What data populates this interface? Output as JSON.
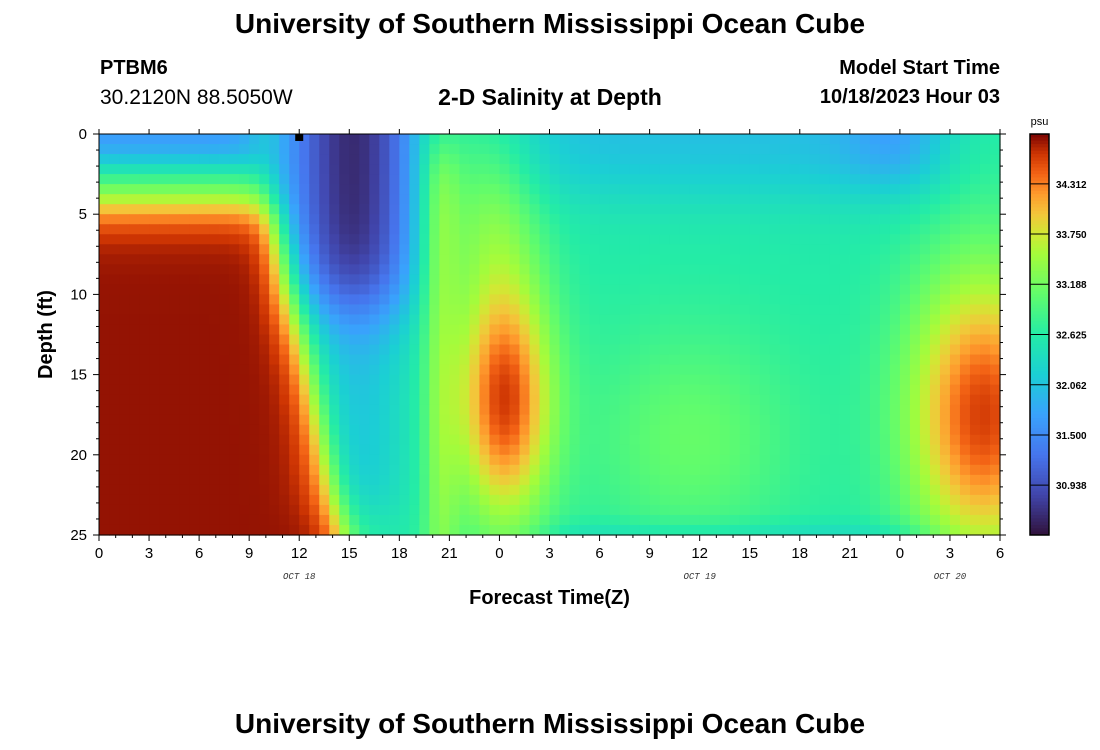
{
  "header": {
    "title": "University of Southern Mississippi Ocean Cube",
    "footer_title": "University of Southern Mississippi Ocean Cube",
    "station_id": "PTBM6",
    "coordinates": "30.2120N  88.5050W",
    "plot_title": "2-D Salinity at Depth",
    "start_time_label": "Model Start Time",
    "start_time_value": "10/18/2023 Hour 03"
  },
  "chart_data": {
    "type": "heatmap",
    "title": "2-D Salinity at Depth",
    "xlabel": "Forecast Time(Z)",
    "ylabel": "Depth (ft)",
    "x_tick_labels": [
      "0",
      "3",
      "6",
      "9",
      "12",
      "15",
      "18",
      "21",
      "0",
      "3",
      "6",
      "9",
      "12",
      "15",
      "18",
      "21",
      "0",
      "3",
      "6"
    ],
    "date_labels": [
      {
        "text": "OCT 18",
        "at_tick": 4
      },
      {
        "text": "OCT 19",
        "at_tick": 12
      },
      {
        "text": "OCT 20",
        "at_tick": 17
      }
    ],
    "x_hours_range": [
      0,
      54
    ],
    "y_ticks": [
      0,
      5,
      10,
      15,
      20,
      25
    ],
    "ylim": [
      0,
      25
    ],
    "y_inverted": true,
    "colorbar": {
      "unit": "psu",
      "range": [
        30.38,
        34.87
      ],
      "tick_values": [
        34.312,
        33.75,
        33.188,
        32.625,
        32.062,
        31.5,
        30.938
      ],
      "tick_labels": [
        "34.312",
        "33.750",
        "33.188",
        "32.625",
        "32.062",
        "31.500",
        "30.938"
      ],
      "colormap": "turbo"
    },
    "current_time_marker_hour": 12,
    "salinity_features": [
      {
        "region": "hours 0-9, depth 6-25 ft",
        "salinity_psu": 34.8
      },
      {
        "region": "hours 11-18, depth 0-12 ft",
        "salinity_psu": 30.6
      },
      {
        "region": "hours 23-26, depth 10-22 ft",
        "salinity_psu": 34.6
      },
      {
        "region": "hours 33-40, depth 0-25 ft",
        "salinity_psu": 32.7
      },
      {
        "region": "hours 33-38, depth 12-24 ft",
        "salinity_psu": 33.2
      },
      {
        "region": "hours 51-54, depth 12-25 ft",
        "salinity_psu": 34.6
      }
    ]
  }
}
